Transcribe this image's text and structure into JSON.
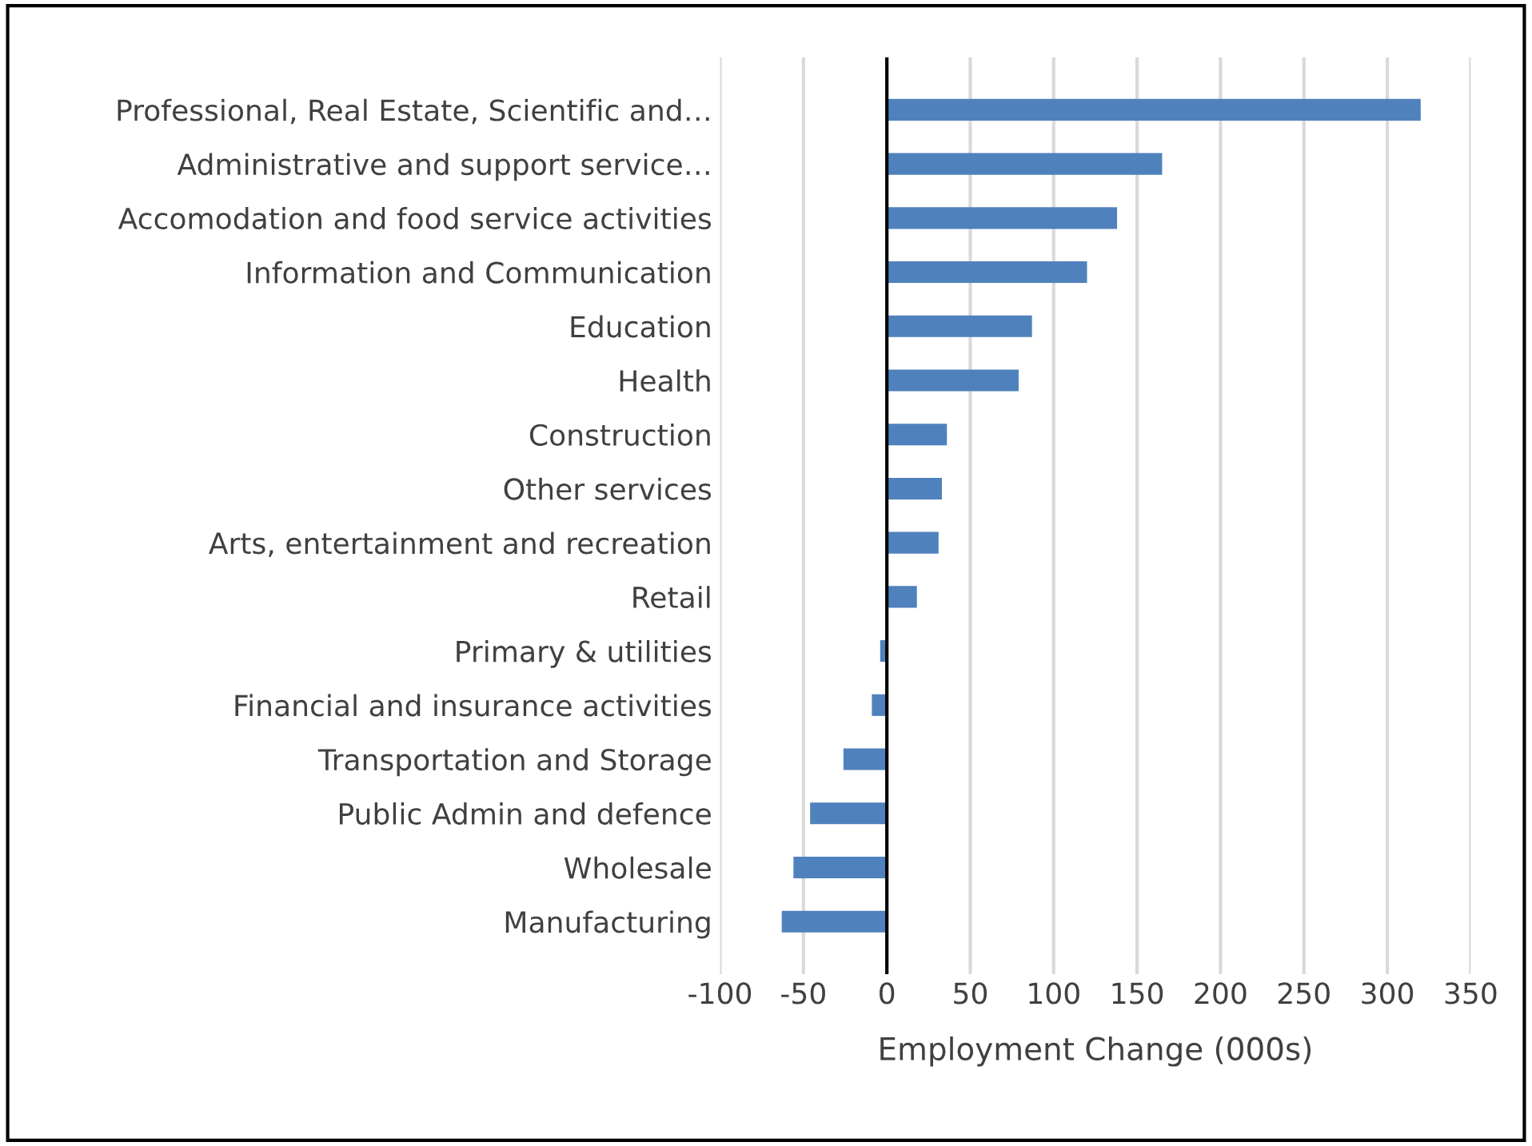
{
  "chart_data": {
    "type": "bar",
    "orientation": "horizontal",
    "xlabel": "Employment Change (000s)",
    "categories": [
      "Professional, Real Estate, Scientific and…",
      "Administrative and support service…",
      "Accomodation and food service activities",
      "Information and Communication",
      "Education",
      "Health",
      "Construction",
      "Other services",
      "Arts, entertainment and recreation",
      "Retail",
      "Primary & utilities",
      "Financial and insurance activities",
      "Transportation and Storage",
      "Public Admin and defence",
      "Wholesale",
      "Manufacturing"
    ],
    "values": [
      320,
      165,
      138,
      120,
      87,
      79,
      36,
      33,
      31,
      18,
      -4,
      -9,
      -26,
      -46,
      -56,
      -63
    ],
    "color": "#4f81bd",
    "xlim": [
      -100,
      350
    ],
    "xticks": [
      -100,
      -50,
      0,
      50,
      100,
      150,
      200,
      250,
      300,
      350
    ],
    "grid": "x"
  }
}
